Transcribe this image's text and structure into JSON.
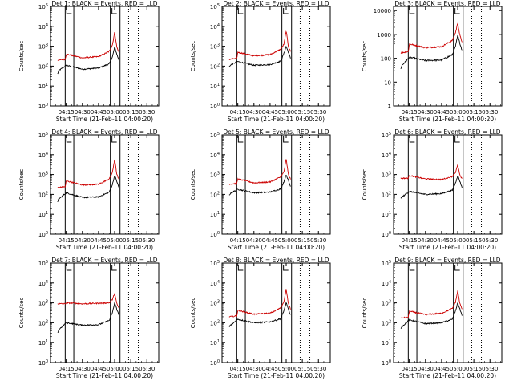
{
  "figure": {
    "background": "#ffffff"
  },
  "colors": {
    "events": "#000000",
    "lld": "#cc0000",
    "axes": "#000000"
  },
  "chart_data": [
    {
      "type": "line",
      "title": "Det 1: BLACK = Events, RED = LLD",
      "xlabel": "Start Time (21-Feb-11 04:00:20)",
      "ylabel": "Counts/sec",
      "x_ticks": [
        "04:15",
        "04:30",
        "04:45",
        "05:00",
        "05:15",
        "05:30"
      ],
      "y_ticks": [
        "10^0",
        "10^1",
        "10^2",
        "10^3",
        "10^4",
        "10^5"
      ],
      "y_scale": "log",
      "ylim": [
        1,
        100000
      ],
      "xlim": [
        "04:00:20",
        "05:41"
      ],
      "vlines_solid": [
        "04:14",
        "04:22",
        "04:56",
        "05:05"
      ],
      "vlines_dotted": [
        "05:13",
        "05:22"
      ],
      "gap": [
        "04:00:20",
        "04:07"
      ],
      "series": [
        {
          "name": "Events",
          "color": "black",
          "x": [
            "04:07",
            "04:08",
            "04:09",
            "04:15",
            "04:30",
            "04:45",
            "04:55",
            "04:58",
            "05:00",
            "05:02",
            "05:04"
          ],
          "values": [
            40,
            60,
            65,
            110,
            70,
            80,
            130,
            300,
            900,
            400,
            200
          ]
        },
        {
          "name": "LLD",
          "color": "red",
          "x": [
            "04:07",
            "04:14",
            "04:15",
            "04:30",
            "04:45",
            "04:55",
            "04:58",
            "05:00",
            "05:02",
            "05:04"
          ],
          "values": [
            200,
            220,
            400,
            260,
            300,
            550,
            1200,
            5000,
            900,
            500
          ]
        }
      ]
    },
    {
      "type": "line",
      "title": "Det 2: BLACK = Events, RED = LLD",
      "xlabel": "Start Time (21-Feb-11 04:00:20)",
      "ylabel": "Counts/sec",
      "x_ticks": [
        "04:15",
        "04:30",
        "04:45",
        "05:00",
        "05:15",
        "05:30"
      ],
      "y_ticks": [
        "10^0",
        "10^1",
        "10^2",
        "10^3",
        "10^4",
        "10^5"
      ],
      "y_scale": "log",
      "ylim": [
        1,
        100000
      ],
      "xlim": [
        "04:00:20",
        "05:41"
      ],
      "vlines_solid": [
        "04:14",
        "04:22",
        "04:56",
        "05:05"
      ],
      "vlines_dotted": [
        "05:13",
        "05:22"
      ],
      "gap": [
        "04:00:20",
        "04:07"
      ],
      "series": [
        {
          "name": "Events",
          "color": "black",
          "x": [
            "04:07",
            "04:08",
            "04:09",
            "04:15",
            "04:30",
            "04:45",
            "04:55",
            "04:58",
            "05:00",
            "05:02",
            "05:04"
          ],
          "values": [
            90,
            110,
            120,
            170,
            110,
            120,
            180,
            450,
            1000,
            500,
            250
          ]
        },
        {
          "name": "LLD",
          "color": "red",
          "x": [
            "04:07",
            "04:14",
            "04:15",
            "04:30",
            "04:45",
            "04:55",
            "04:58",
            "05:00",
            "05:02",
            "05:04"
          ],
          "values": [
            220,
            240,
            500,
            330,
            380,
            700,
            1300,
            6000,
            1000,
            550
          ]
        }
      ]
    },
    {
      "type": "line",
      "title": "Det 3: BLACK = Events, RED = LLD",
      "xlabel": "Start Time (21-Feb-11 04:00:20)",
      "ylabel": "Counts/sec",
      "x_ticks": [
        "04:15",
        "04:30",
        "04:45",
        "05:00",
        "05:15",
        "05:30"
      ],
      "y_ticks": [
        "1",
        "10",
        "100",
        "1000",
        "10000"
      ],
      "y_scale": "log",
      "ylim": [
        1,
        15000
      ],
      "xlim": [
        "04:00:20",
        "05:41"
      ],
      "vlines_solid": [
        "04:14",
        "04:22",
        "04:56",
        "05:05"
      ],
      "vlines_dotted": [
        "05:13",
        "05:22"
      ],
      "gap": [
        "04:00:20",
        "04:07"
      ],
      "series": [
        {
          "name": "Events",
          "color": "black",
          "x": [
            "04:07",
            "04:08",
            "04:09",
            "04:15",
            "04:30",
            "04:45",
            "04:55",
            "04:58",
            "05:00",
            "05:02",
            "05:04"
          ],
          "values": [
            35,
            50,
            55,
            110,
            80,
            85,
            140,
            320,
            900,
            420,
            220
          ]
        },
        {
          "name": "LLD",
          "color": "red",
          "x": [
            "04:07",
            "04:14",
            "04:15",
            "04:30",
            "04:45",
            "04:55",
            "04:58",
            "05:00",
            "05:02",
            "05:04"
          ],
          "values": [
            170,
            190,
            400,
            280,
            310,
            560,
            1200,
            3000,
            900,
            500
          ]
        }
      ]
    },
    {
      "type": "line",
      "title": "Det 4: BLACK = Events, RED = LLD",
      "xlabel": "Start Time (21-Feb-11 04:00:20)",
      "ylabel": "Counts/sec",
      "x_ticks": [
        "04:15",
        "04:30",
        "04:45",
        "05:00",
        "05:15",
        "05:30"
      ],
      "y_ticks": [
        "10^0",
        "10^1",
        "10^2",
        "10^3",
        "10^4",
        "10^5"
      ],
      "y_scale": "log",
      "ylim": [
        1,
        100000
      ],
      "xlim": [
        "04:00:20",
        "05:41"
      ],
      "vlines_solid": [
        "04:14",
        "04:22",
        "04:56",
        "05:05"
      ],
      "vlines_dotted": [
        "05:13",
        "05:22"
      ],
      "gap": [
        "04:00:20",
        "04:07"
      ],
      "series": [
        {
          "name": "Events",
          "color": "black",
          "x": [
            "04:07",
            "04:08",
            "04:09",
            "04:15",
            "04:30",
            "04:45",
            "04:55",
            "04:58",
            "05:00",
            "05:02",
            "05:04"
          ],
          "values": [
            40,
            60,
            65,
            120,
            70,
            75,
            130,
            320,
            900,
            450,
            220
          ]
        },
        {
          "name": "LLD",
          "color": "red",
          "x": [
            "04:07",
            "04:14",
            "04:15",
            "04:30",
            "04:45",
            "04:55",
            "04:58",
            "05:00",
            "05:02",
            "05:04"
          ],
          "values": [
            220,
            240,
            480,
            300,
            320,
            600,
            1300,
            6000,
            1000,
            550
          ]
        }
      ]
    },
    {
      "type": "line",
      "title": "Det 5: BLACK = Events, RED = LLD",
      "xlabel": "Start Time (21-Feb-11 04:00:20)",
      "ylabel": "Counts/sec",
      "x_ticks": [
        "04:15",
        "04:30",
        "04:45",
        "05:00",
        "05:15",
        "05:30"
      ],
      "y_ticks": [
        "10^0",
        "10^1",
        "10^2",
        "10^3",
        "10^4",
        "10^5"
      ],
      "y_scale": "log",
      "ylim": [
        1,
        100000
      ],
      "xlim": [
        "04:00:20",
        "05:41"
      ],
      "vlines_solid": [
        "04:14",
        "04:22",
        "04:56",
        "05:05"
      ],
      "vlines_dotted": [
        "05:13",
        "05:22"
      ],
      "gap": [
        "04:00:20",
        "04:07"
      ],
      "series": [
        {
          "name": "Events",
          "color": "black",
          "x": [
            "04:07",
            "04:08",
            "04:09",
            "04:15",
            "04:30",
            "04:45",
            "04:55",
            "04:58",
            "05:00",
            "05:02",
            "05:04"
          ],
          "values": [
            90,
            110,
            120,
            180,
            120,
            130,
            190,
            450,
            1000,
            500,
            250
          ]
        },
        {
          "name": "LLD",
          "color": "red",
          "x": [
            "04:07",
            "04:14",
            "04:15",
            "04:30",
            "04:45",
            "04:55",
            "04:58",
            "05:00",
            "05:02",
            "05:04"
          ],
          "values": [
            330,
            350,
            600,
            380,
            420,
            750,
            1400,
            6000,
            1000,
            600
          ]
        }
      ]
    },
    {
      "type": "line",
      "title": "Det 6: BLACK = Events, RED = LLD",
      "xlabel": "Start Time (21-Feb-11 04:00:20)",
      "ylabel": "Counts/sec",
      "x_ticks": [
        "04:15",
        "04:30",
        "04:45",
        "05:00",
        "05:15",
        "05:30"
      ],
      "y_ticks": [
        "10^0",
        "10^1",
        "10^2",
        "10^3",
        "10^4",
        "10^5"
      ],
      "y_scale": "log",
      "ylim": [
        1,
        100000
      ],
      "xlim": [
        "04:00:20",
        "05:41"
      ],
      "vlines_solid": [
        "04:14",
        "04:22",
        "04:56",
        "05:05"
      ],
      "vlines_dotted": [
        "05:13",
        "05:22"
      ],
      "gap": [
        "04:00:20",
        "04:07"
      ],
      "series": [
        {
          "name": "Events",
          "color": "black",
          "x": [
            "04:07",
            "04:08",
            "04:09",
            "04:15",
            "04:30",
            "04:45",
            "04:55",
            "04:58",
            "05:00",
            "05:02",
            "05:04"
          ],
          "values": [
            60,
            75,
            80,
            140,
            100,
            110,
            160,
            380,
            900,
            450,
            230
          ]
        },
        {
          "name": "LLD",
          "color": "red",
          "x": [
            "04:07",
            "04:14",
            "04:15",
            "04:30",
            "04:45",
            "04:55",
            "04:58",
            "05:00",
            "05:02",
            "05:04"
          ],
          "values": [
            650,
            650,
            900,
            600,
            560,
            800,
            1300,
            3000,
            900,
            600
          ]
        }
      ]
    },
    {
      "type": "line",
      "title": "Det 7: BLACK = Events, RED = LLD",
      "xlabel": "Start Time (21-Feb-11 04:00:20)",
      "ylabel": "Counts/sec",
      "x_ticks": [
        "04:15",
        "04:30",
        "04:45",
        "05:00",
        "05:15",
        "05:30"
      ],
      "y_ticks": [
        "10^0",
        "10^1",
        "10^2",
        "10^3",
        "10^4",
        "10^5"
      ],
      "y_scale": "log",
      "ylim": [
        1,
        100000
      ],
      "xlim": [
        "04:00:20",
        "05:41"
      ],
      "vlines_solid": [
        "04:14",
        "04:22",
        "04:56",
        "05:05"
      ],
      "vlines_dotted": [
        "05:13",
        "05:22"
      ],
      "gap": [
        "04:00:20",
        "04:07"
      ],
      "series": [
        {
          "name": "Events",
          "color": "black",
          "x": [
            "04:07",
            "04:08",
            "04:09",
            "04:15",
            "04:30",
            "04:45",
            "04:55",
            "04:58",
            "05:00",
            "05:02",
            "05:04"
          ],
          "values": [
            30,
            45,
            50,
            100,
            75,
            80,
            130,
            330,
            1000,
            480,
            240
          ]
        },
        {
          "name": "LLD",
          "color": "red",
          "x": [
            "04:07",
            "04:14",
            "04:15",
            "04:30",
            "04:45",
            "04:55",
            "04:58",
            "05:00",
            "05:02",
            "05:04"
          ],
          "values": [
            900,
            900,
            1000,
            900,
            950,
            1000,
            1500,
            3000,
            900,
            550
          ]
        }
      ]
    },
    {
      "type": "line",
      "title": "Det 8: BLACK = Events, RED = LLD",
      "xlabel": "Start Time (21-Feb-11 04:00:20)",
      "ylabel": "Counts/sec",
      "x_ticks": [
        "04:15",
        "04:30",
        "04:45",
        "05:00",
        "05:15",
        "05:30"
      ],
      "y_ticks": [
        "10^0",
        "10^1",
        "10^2",
        "10^3",
        "10^4",
        "10^5"
      ],
      "y_scale": "log",
      "ylim": [
        1,
        100000
      ],
      "xlim": [
        "04:00:20",
        "05:41"
      ],
      "vlines_solid": [
        "04:14",
        "04:22",
        "04:56",
        "05:05"
      ],
      "vlines_dotted": [
        "05:13",
        "05:22"
      ],
      "gap": [
        "04:00:20",
        "04:07"
      ],
      "series": [
        {
          "name": "Events",
          "color": "black",
          "x": [
            "04:07",
            "04:08",
            "04:09",
            "04:15",
            "04:30",
            "04:45",
            "04:55",
            "04:58",
            "05:00",
            "05:02",
            "05:04"
          ],
          "values": [
            60,
            75,
            80,
            150,
            100,
            110,
            160,
            420,
            1000,
            480,
            240
          ]
        },
        {
          "name": "LLD",
          "color": "red",
          "x": [
            "04:07",
            "04:14",
            "04:15",
            "04:30",
            "04:45",
            "04:55",
            "04:58",
            "05:00",
            "05:02",
            "05:04"
          ],
          "values": [
            200,
            220,
            420,
            270,
            300,
            560,
            1200,
            5000,
            900,
            500
          ]
        }
      ]
    },
    {
      "type": "line",
      "title": "Det 9: BLACK = Events, RED = LLD",
      "xlabel": "Start Time (21-Feb-11 04:00:20)",
      "ylabel": "Counts/sec",
      "x_ticks": [
        "04:15",
        "04:30",
        "04:45",
        "05:00",
        "05:15",
        "05:30"
      ],
      "y_ticks": [
        "10^0",
        "10^1",
        "10^2",
        "10^3",
        "10^4",
        "10^5"
      ],
      "y_scale": "log",
      "ylim": [
        1,
        100000
      ],
      "xlim": [
        "04:00:20",
        "05:41"
      ],
      "vlines_solid": [
        "04:14",
        "04:22",
        "04:56",
        "05:05"
      ],
      "vlines_dotted": [
        "05:13",
        "05:22"
      ],
      "gap": [
        "04:00:20",
        "04:07"
      ],
      "series": [
        {
          "name": "Events",
          "color": "black",
          "x": [
            "04:07",
            "04:08",
            "04:09",
            "04:15",
            "04:30",
            "04:45",
            "04:55",
            "04:58",
            "05:00",
            "05:02",
            "05:04"
          ],
          "values": [
            50,
            65,
            70,
            140,
            90,
            100,
            150,
            400,
            1000,
            480,
            240
          ]
        },
        {
          "name": "LLD",
          "color": "red",
          "x": [
            "04:07",
            "04:14",
            "04:15",
            "04:30",
            "04:45",
            "04:55",
            "04:58",
            "05:00",
            "05:02",
            "05:04"
          ],
          "values": [
            170,
            190,
            380,
            260,
            300,
            520,
            1100,
            4000,
            900,
            500
          ]
        }
      ]
    }
  ]
}
